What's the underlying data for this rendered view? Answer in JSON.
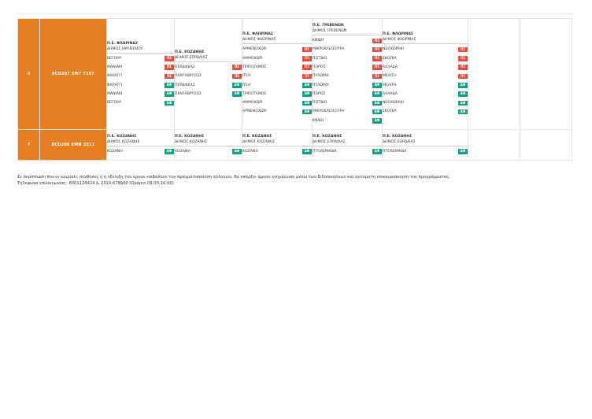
{
  "rows": [
    {
      "num": "6",
      "code": "ECO207 EMT 7387",
      "cells": [
        {
          "pe": "Π.Ε. ΦΛΩΡΙΝΑΣ",
          "dimos": "ΔΗΜΟΣ ΑΜΥΝΤΑΙΟΥ",
          "stops": [
            {
              "name": "ΒΕΓΟΡΑ",
              "type": "ΠΣ"
            },
            {
              "name": "ΜΑΝΙΑΚΙ",
              "type": "ΠΣ"
            },
            {
              "name": "ΦΑΡΑΓΓΙ",
              "type": "ΠΣ"
            },
            {
              "name": "ΦΑΡΑΓΓΙ",
              "type": "ΑΦ"
            },
            {
              "name": "ΜΑΝΙΑΚΙ",
              "type": "ΑΦ"
            },
            {
              "name": "ΒΕΓΟΡΑ",
              "type": "ΑΦ"
            }
          ]
        },
        {
          "pe": "Π.Ε. ΚΟΖΑΝΗΣ",
          "dimos": "ΔΗΜΟΣ ΕΟΡΔΑΙΑΣ",
          "stops": [
            {
              "name": "ΠΕΡΔΙΚΚΑΣ",
              "type": "ΠΣ"
            },
            {
              "name": "ΠΕΝΤΑΒΡΥΣΟΣ",
              "type": "ΠΣ"
            },
            {
              "name": "ΠΕΡΔΙΚΚΑΣ",
              "type": "ΑΦ"
            },
            {
              "name": "ΠΕΝΤΑΒΡΥΣΟΣ",
              "type": "ΑΦ"
            }
          ]
        },
        {
          "pe": "Π.Ε. ΦΛΩΡΙΝΑΣ",
          "dimos": "ΔΗΜΟΣ ΦΛΩΡΙΝΑΣ",
          "stops": [
            {
              "name": "ΑΡΜΕΝΟΧΩΡΙ",
              "type": "ΠΣ"
            },
            {
              "name": "ΑΜΜΟΧΩΡΙ",
              "type": "ΠΣ"
            },
            {
              "name": "ΤΡΙΠΟΤΑΜΟΣ",
              "type": "ΠΣ"
            },
            {
              "name": "ΙΤΕΑ",
              "type": "ΠΣ"
            },
            {
              "name": "ΙΤΕΑ",
              "type": "ΑΦ"
            },
            {
              "name": "ΤΡΙΠΟΤΑΜΟΣ",
              "type": "ΑΦ"
            },
            {
              "name": "ΑΜΜΟΧΩΡΙ",
              "type": "ΑΦ"
            },
            {
              "name": "ΑΡΜΕΝΟΧΩΡΙ",
              "type": "ΑΦ"
            }
          ]
        },
        {
          "pe": "Π.Ε. ΓΡΕΒΕΝΩΝ",
          "dimos": "ΔΗΜΟΣ ΓΡΕΒΕΝΩΝ",
          "stops": [
            {
              "name": "ΚΝΙΔΗ",
              "type": "ΠΣ"
            },
            {
              "name": "ΜΙΚΡΟΚΛΕΙΣΟΥΡΑ",
              "type": "ΠΣ"
            },
            {
              "name": "ΠΙΣΤΙΚΟ",
              "type": "ΠΣ"
            },
            {
              "name": "ΠΟΡΟΣ",
              "type": "ΠΣ"
            },
            {
              "name": "ΠΥΛΩΡΟΙ",
              "type": "ΠΣ"
            },
            {
              "name": "ΠΥΛΩΡΟΙ",
              "type": "ΑΦ"
            },
            {
              "name": "ΠΟΡΟΣ",
              "type": "ΑΦ"
            },
            {
              "name": "ΠΙΣΤΙΚΟ",
              "type": "ΑΦ"
            },
            {
              "name": "ΜΙΚΡΟΚΛΕΙΣΟΥΡΑ",
              "type": "ΑΦ"
            },
            {
              "name": "ΚΝΙΔΗ",
              "type": "ΑΦ"
            }
          ]
        },
        {
          "pe": "Π.Ε. ΦΛΩΡΙΝΑΣ",
          "dimos": "ΔΗΜΟΣ ΦΛΩΡΙΝΑΣ",
          "stops": [
            {
              "name": "ΝΕΟΧΩΡΑΚΙ",
              "type": "ΠΣ"
            },
            {
              "name": "ΣΚΟΠΙΑ",
              "type": "ΠΣ"
            },
            {
              "name": "ΑΧΛΑΔΑ",
              "type": "ΠΣ"
            },
            {
              "name": "ΜΕΛΙΤΗ",
              "type": "ΠΣ"
            },
            {
              "name": "ΜΕΛΙΤΗ",
              "type": "ΑΦ"
            },
            {
              "name": "ΑΧΛΑΔΑ",
              "type": "ΑΦ"
            },
            {
              "name": "ΝΕΟΧΩΡΑΚΙ",
              "type": "ΑΦ"
            },
            {
              "name": "ΣΚΟΠΙΑ",
              "type": "ΑΦ"
            }
          ]
        }
      ]
    },
    {
      "num": "7",
      "code": "ECO208 EMN 3311",
      "cells": [
        {
          "pe": "Π.Ε. ΚΟΖΑΝΗΣ",
          "dimos": "ΔΗΜΟΣ ΚΟΖΑΝΗΣ",
          "stops": [
            {
              "name": "ΚΟΖΑΝΗ",
              "type": "ΑΦ"
            }
          ]
        },
        {
          "pe": "Π.Ε. ΚΟΖΑΝΗΣ",
          "dimos": "ΔΗΜΟΣ ΚΟΖΑΝΗΣ",
          "stops": [
            {
              "name": "ΚΟΖΑΝΗ",
              "type": "ΑΦ"
            }
          ]
        },
        {
          "pe": "Π.Ε. ΚΟΖΑΝΗΣ",
          "dimos": "ΔΗΜΟΣ ΚΟΖΑΝΗΣ",
          "stops": [
            {
              "name": "ΚΟΖΑΝΗ",
              "type": "ΑΦ"
            }
          ]
        },
        {
          "pe": "Π.Ε. ΚΟΖΑΝΗΣ",
          "dimos": "ΔΗΜΟΣ ΕΟΡΔΑΙΑΣ",
          "stops": [
            {
              "name": "ΠΤΟΛΕΜΑΙΔΑ",
              "type": "ΑΦ"
            }
          ]
        },
        {
          "pe": "Π.Ε. ΚΟΖΑΝΗΣ",
          "dimos": "ΔΗΜΟΣ ΕΟΡΔΑΙΑΣ",
          "stops": [
            {
              "name": "ΠΤΟΛΕΜΑΙΔΑ",
              "type": "ΑΦ"
            }
          ]
        }
      ]
    }
  ],
  "badge_colors": {
    "ΠΣ": "#e74c3c",
    "ΑΦ": "#16a085"
  },
  "row_accent_color": "#e67e22",
  "note": {
    "line1": "Σε περίπτωση που οι καιρικές συνθήκες ή η εξέλιξη του έργου επιβάλουν την πραγματοποίηση αλλαγών, θα υπάρξει άμεση ενημέρωση μέσω των Ειδοποιήσεων και αυτόματη επικαιροποίηση του προγράμματος.",
    "line2": "Τηλέφωνα επικοινωνίας: 8001124424 & 2310-678900 (Ωράριο 09:00-16:00)"
  }
}
